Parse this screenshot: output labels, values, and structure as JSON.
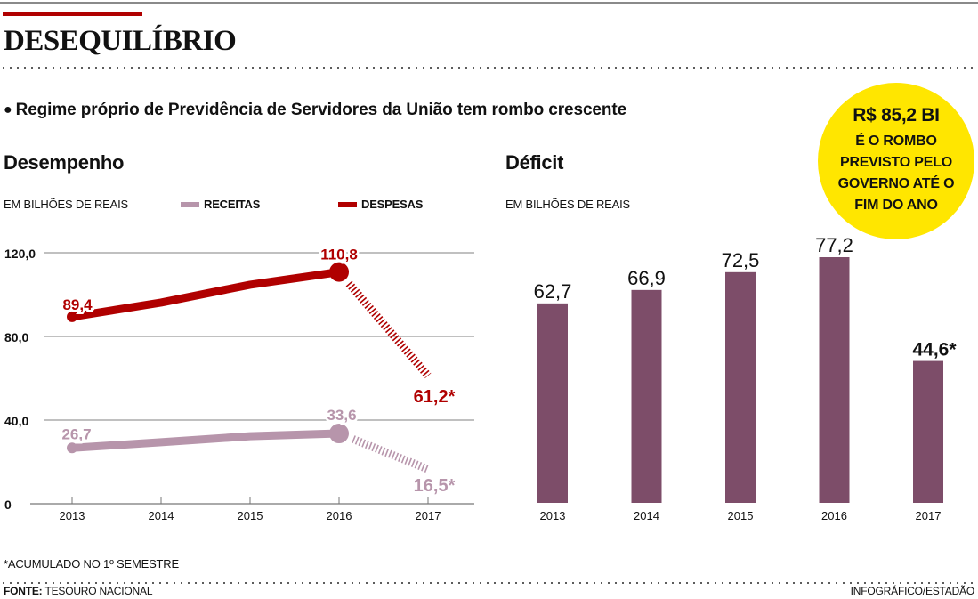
{
  "header": {
    "title": "DESEQUILÍBRIO",
    "bullet": "●",
    "subtitle": "Regime próprio de Previdência de Servidores da União tem rombo crescente"
  },
  "callout": {
    "amount": "R$ 85,2 BI",
    "lines": [
      "É O ROMBO",
      "PREVISTO PELO",
      "GOVERNO ATÉ O",
      "FIM DO ANO"
    ]
  },
  "legend": {
    "receitas": "RECEITAS",
    "despesas": "DESPESAS"
  },
  "colors": {
    "accent": "#b00000",
    "receitas": "#b795ab",
    "despesas": "#b00000",
    "bars": "#7d4d69",
    "callout": "#ffe600",
    "grid": "#9a9a9a",
    "axis": "#777777"
  },
  "footnote": "*ACUMULADO NO 1º SEMESTRE",
  "source": {
    "label": "FONTE:",
    "value": "TESOURO NACIONAL"
  },
  "credit": "INFOGRÁFICO/ESTADÃO",
  "chart_data": [
    {
      "type": "line",
      "title": "Desempenho",
      "ylabel": "EM BILHÕES DE REAIS",
      "xlabel": "",
      "categories": [
        "2013",
        "2014",
        "2015",
        "2016",
        "2017"
      ],
      "ylim": [
        0,
        120
      ],
      "y_ticks": [
        0,
        40,
        80,
        120
      ],
      "y_tick_labels": [
        "0",
        "40,0",
        "80,0",
        "120,0"
      ],
      "grid": true,
      "legend_position": "top",
      "partial_period_note": "2017 = *ACUMULADO NO 1º SEMESTRE (dashed segment)",
      "series": [
        {
          "name": "RECEITAS",
          "color": "#b795ab",
          "values": [
            26.7,
            29.4,
            32.3,
            33.6,
            16.5
          ],
          "labels": [
            "26,7",
            null,
            null,
            "33,6",
            "16,5*"
          ]
        },
        {
          "name": "DESPESAS",
          "color": "#b00000",
          "values": [
            89.4,
            96.2,
            104.7,
            110.8,
            61.2
          ],
          "labels": [
            "89,4",
            null,
            null,
            "110,8",
            "61,2*"
          ]
        }
      ]
    },
    {
      "type": "bar",
      "title": "Déficit",
      "ylabel": "EM BILHÕES DE REAIS",
      "xlabel": "",
      "categories": [
        "2013",
        "2014",
        "2015",
        "2016",
        "2017"
      ],
      "values": [
        62.7,
        66.9,
        72.5,
        77.2,
        44.6
      ],
      "value_labels": [
        "62,7",
        "66,9",
        "72,5",
        "77,2",
        "44,6*"
      ],
      "ylim": [
        0,
        80
      ],
      "grid": false,
      "color": "#7d4d69"
    }
  ]
}
